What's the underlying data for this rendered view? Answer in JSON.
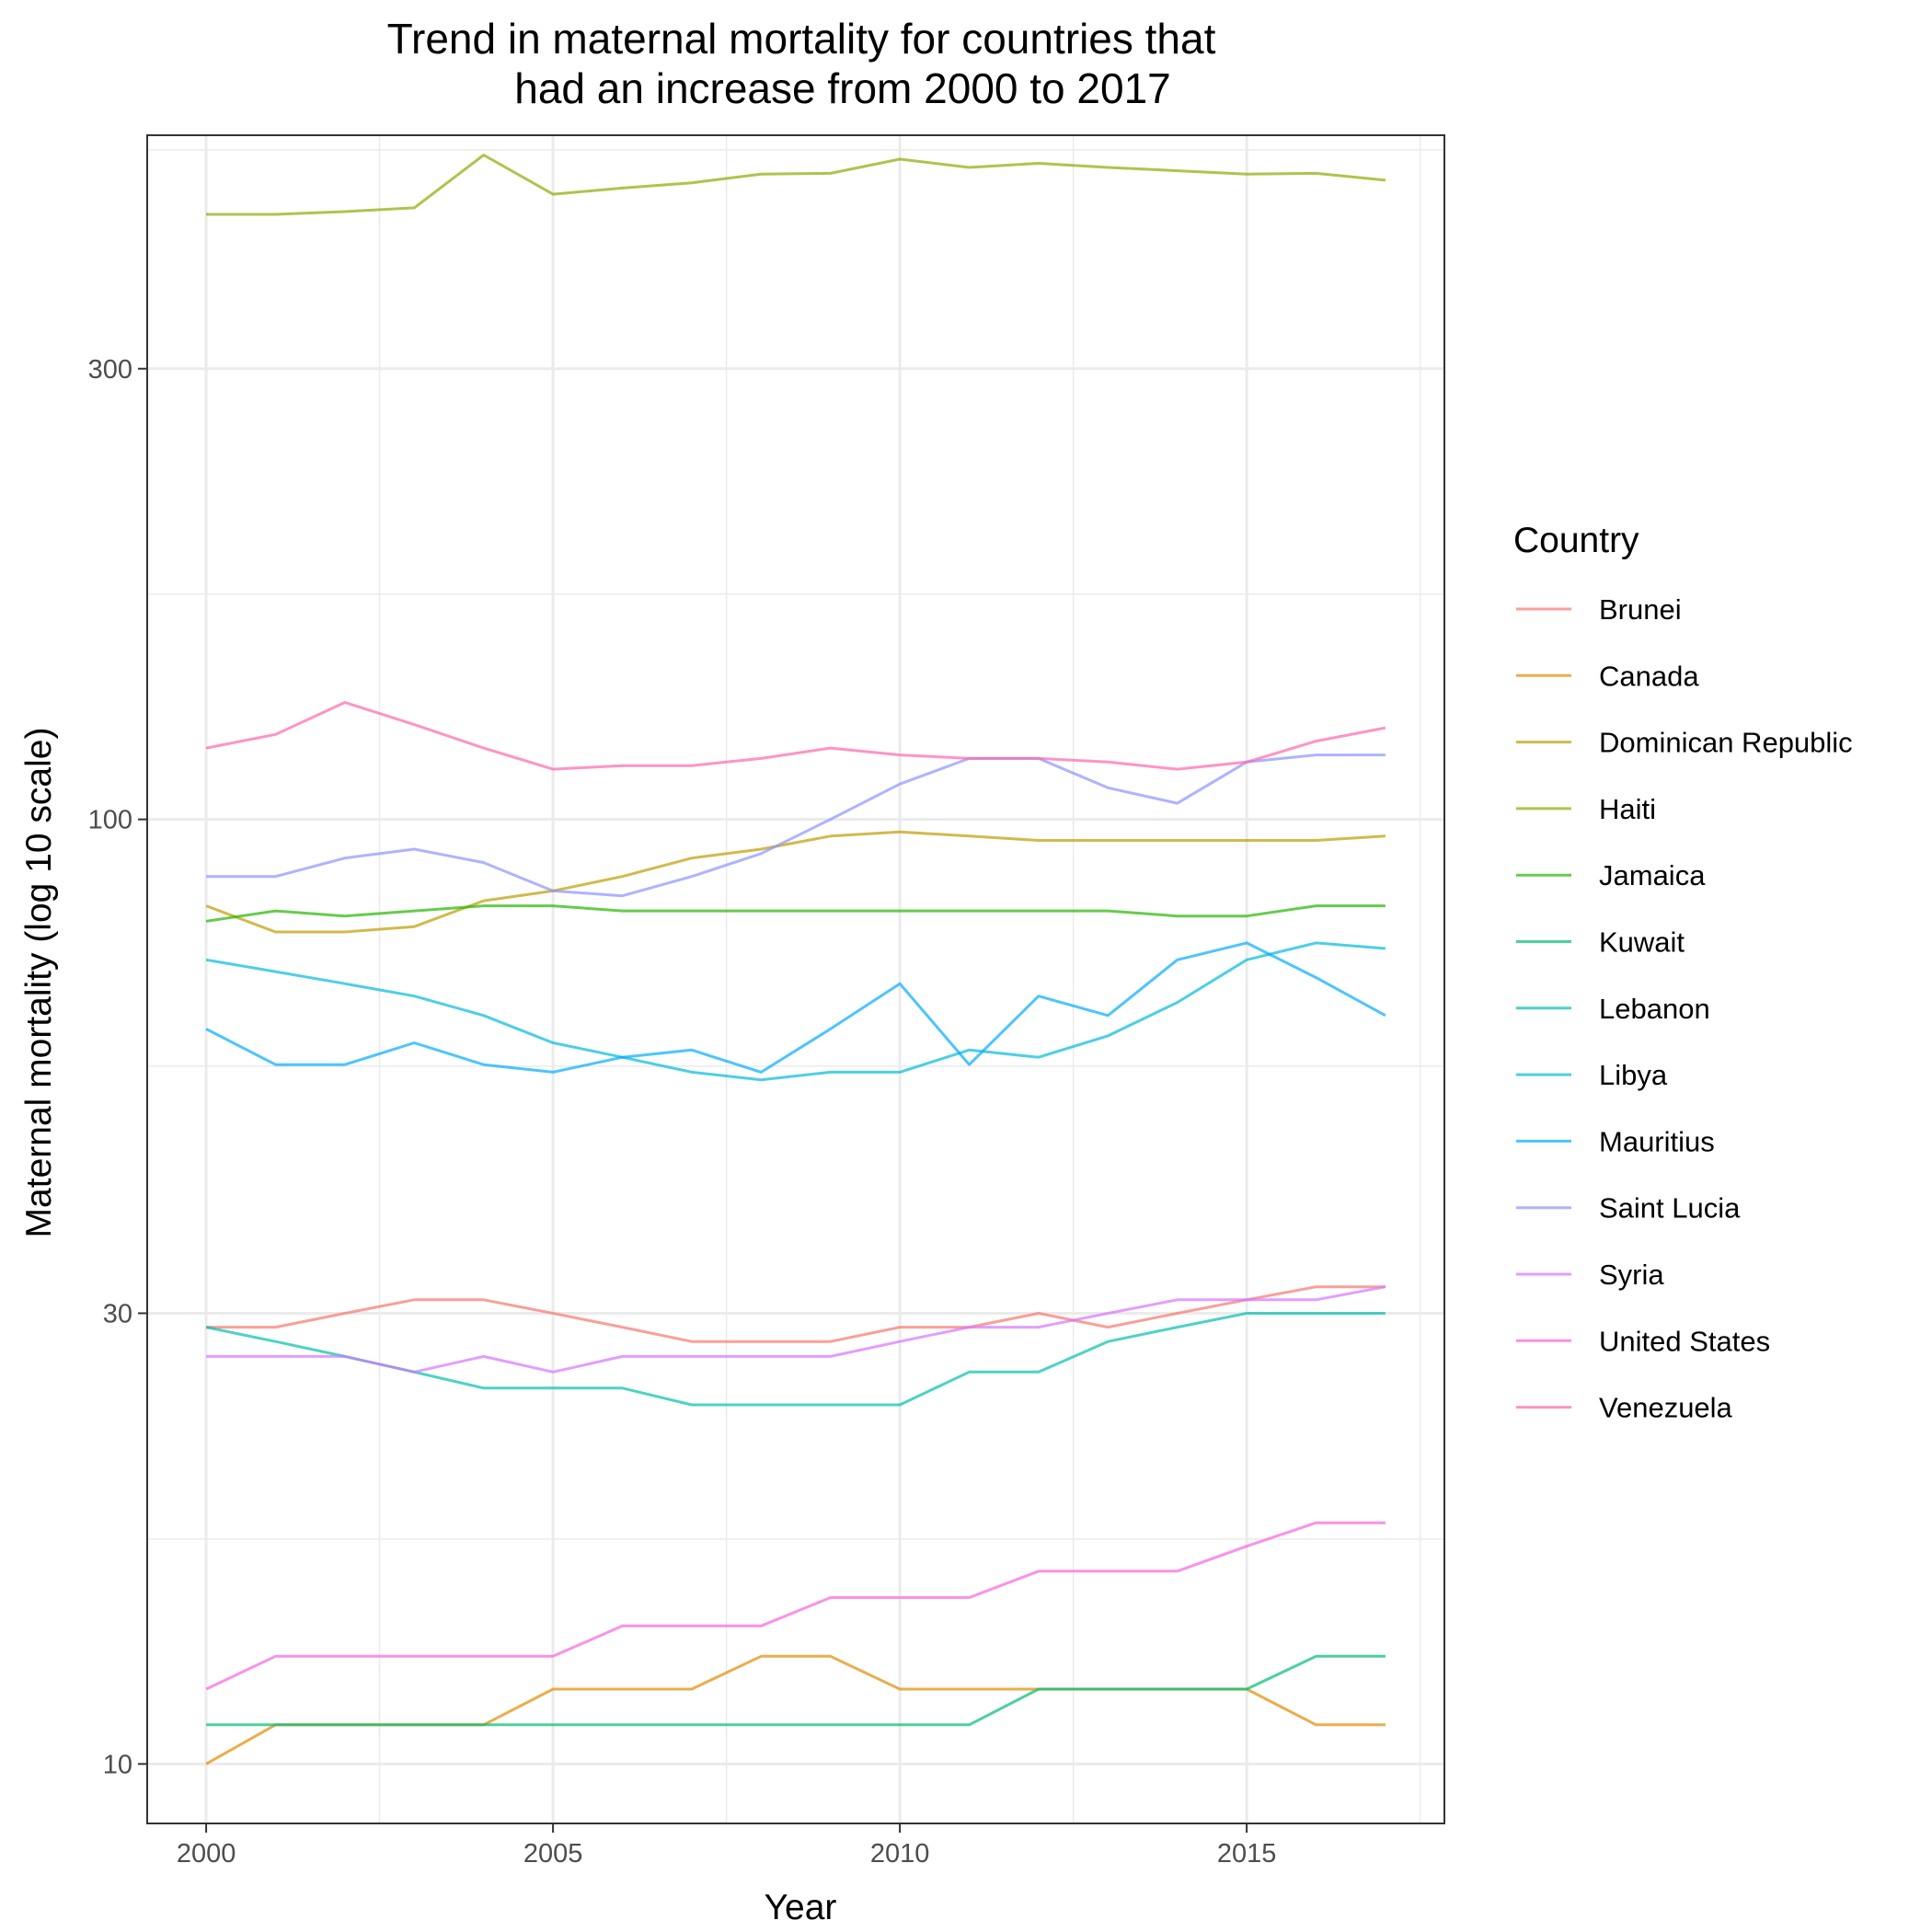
{
  "chart_data": {
    "type": "line",
    "title": "Trend in maternal mortality for countries that had an increase from 2000 to 2017",
    "title_lines": [
      "Trend in maternal mortality for countries that",
      "had an increase from 2000 to 2017"
    ],
    "xlabel": "Year",
    "ylabel": "Maternal mortality (log 10 scale)",
    "y_scale": "log10",
    "xlim": [
      1999.15,
      2017.85
    ],
    "ylim": [
      8.65,
      530
    ],
    "x_ticks": [
      2000,
      2005,
      2010,
      2015
    ],
    "x_tick_labels": [
      "2000",
      "2005",
      "2010",
      "2015"
    ],
    "y_ticks": [
      10,
      30,
      100,
      300
    ],
    "y_tick_labels": [
      "10",
      "30",
      "100",
      "300"
    ],
    "y_minor_gridlines": [
      17.3,
      54.8,
      173.2,
      511.4
    ],
    "grid": true,
    "legend_title": "Country",
    "legend_position": "right",
    "x": [
      2000,
      2001,
      2002,
      2003,
      2004,
      2005,
      2006,
      2007,
      2008,
      2009,
      2010,
      2011,
      2012,
      2013,
      2014,
      2015,
      2016,
      2017
    ],
    "series": [
      {
        "name": "Brunei",
        "color": "#F8766D",
        "values": [
          29,
          29,
          30,
          31,
          31,
          30,
          29,
          28,
          28,
          28,
          29,
          29,
          30,
          29,
          30,
          31,
          32,
          32
        ]
      },
      {
        "name": "Canada",
        "color": "#E18A00",
        "values": [
          10,
          11,
          11,
          11,
          11,
          12,
          12,
          12,
          13,
          13,
          12,
          12,
          12,
          12,
          12,
          12,
          11,
          11
        ]
      },
      {
        "name": "Dominican Republic",
        "color": "#BE9C00",
        "values": [
          81,
          76,
          76,
          77,
          82,
          84,
          87,
          91,
          93,
          96,
          97,
          96,
          95,
          95,
          95,
          95,
          95,
          96
        ]
      },
      {
        "name": "Haiti",
        "color": "#8CAB00",
        "values": [
          437,
          437,
          440,
          444,
          505,
          459,
          466,
          472,
          482,
          483,
          500,
          490,
          495,
          490,
          486,
          482,
          483,
          475
        ]
      },
      {
        "name": "Jamaica",
        "color": "#24B700",
        "values": [
          78,
          80,
          79,
          80,
          81,
          81,
          80,
          80,
          80,
          80,
          80,
          80,
          80,
          80,
          79,
          79,
          81,
          81
        ]
      },
      {
        "name": "Kuwait",
        "color": "#00BE70",
        "values": [
          11,
          11,
          11,
          11,
          11,
          11,
          11,
          11,
          11,
          11,
          11,
          11,
          12,
          12,
          12,
          12,
          13,
          13
        ]
      },
      {
        "name": "Lebanon",
        "color": "#00C1AB",
        "values": [
          29,
          28,
          27,
          26,
          25,
          25,
          25,
          24,
          24,
          24,
          24,
          26,
          26,
          28,
          29,
          30,
          30,
          30
        ]
      },
      {
        "name": "Libya",
        "color": "#00BBDA",
        "values": [
          71,
          69,
          67,
          65,
          62,
          58,
          56,
          54,
          53,
          54,
          54,
          57,
          56,
          59,
          64,
          71,
          74,
          73
        ]
      },
      {
        "name": "Mauritius",
        "color": "#00ACFC",
        "values": [
          60,
          55,
          55,
          58,
          55,
          54,
          56,
          57,
          54,
          60,
          67,
          55,
          65,
          62,
          71,
          74,
          68,
          62
        ]
      },
      {
        "name": "Saint Lucia",
        "color": "#8B93FF",
        "values": [
          87,
          87,
          91,
          93,
          90,
          84,
          83,
          87,
          92,
          100,
          109,
          116,
          116,
          108,
          104,
          115,
          117,
          117
        ]
      },
      {
        "name": "Syria",
        "color": "#D575FE",
        "values": [
          27,
          27,
          27,
          26,
          27,
          26,
          27,
          27,
          27,
          27,
          28,
          29,
          29,
          30,
          31,
          31,
          31,
          32
        ]
      },
      {
        "name": "United States",
        "color": "#F962DD",
        "values": [
          12,
          13,
          13,
          13,
          13,
          13,
          14,
          14,
          14,
          15,
          15,
          15,
          16,
          16,
          16,
          17,
          18,
          18
        ]
      },
      {
        "name": "Venezuela",
        "color": "#FF65AC",
        "values": [
          119,
          123,
          133,
          126,
          119,
          113,
          114,
          114,
          116,
          119,
          117,
          116,
          116,
          115,
          113,
          115,
          121,
          125
        ]
      }
    ]
  }
}
